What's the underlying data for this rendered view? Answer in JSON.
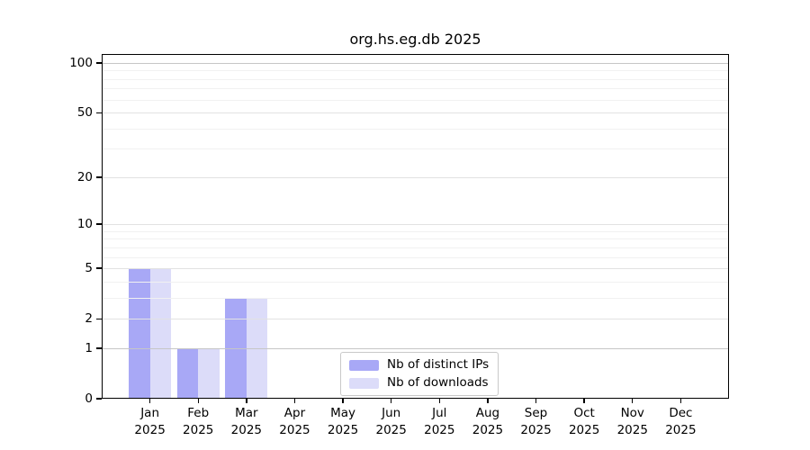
{
  "chart_data": {
    "type": "bar",
    "title": "org.hs.eg.db 2025",
    "categories": [
      {
        "month": "Jan",
        "year": "2025"
      },
      {
        "month": "Feb",
        "year": "2025"
      },
      {
        "month": "Mar",
        "year": "2025"
      },
      {
        "month": "Apr",
        "year": "2025"
      },
      {
        "month": "May",
        "year": "2025"
      },
      {
        "month": "Jun",
        "year": "2025"
      },
      {
        "month": "Jul",
        "year": "2025"
      },
      {
        "month": "Aug",
        "year": "2025"
      },
      {
        "month": "Sep",
        "year": "2025"
      },
      {
        "month": "Oct",
        "year": "2025"
      },
      {
        "month": "Nov",
        "year": "2025"
      },
      {
        "month": "Dec",
        "year": "2025"
      }
    ],
    "series": [
      {
        "name": "Nb of distinct IPs",
        "color": "#a8a8f6",
        "values": [
          5,
          1,
          3,
          0,
          0,
          0,
          0,
          0,
          0,
          0,
          0,
          0
        ]
      },
      {
        "name": "Nb of downloads",
        "color": "#dcdcf9",
        "values": [
          5,
          1,
          3,
          0,
          0,
          0,
          0,
          0,
          0,
          0,
          0,
          0
        ]
      }
    ],
    "yscale": "log1p",
    "yticks_labeled": [
      0,
      1,
      2,
      5,
      10,
      20,
      50,
      100
    ],
    "yticks_minor": [
      3,
      4,
      6,
      7,
      8,
      9,
      30,
      40,
      60,
      70,
      80,
      90
    ],
    "anchor_gridlines": [
      1,
      100
    ],
    "grid": true,
    "legend_position": "bottom-center-inside",
    "colors": {
      "bar_distinct_ips": "#a8a8f6",
      "bar_downloads": "#dcdcf9",
      "anchor_grid": "#c6c6c6",
      "major_grid": "#e2e2e2",
      "minor_grid": "#f1f1f1",
      "axis": "#000000",
      "background": "#ffffff"
    }
  }
}
